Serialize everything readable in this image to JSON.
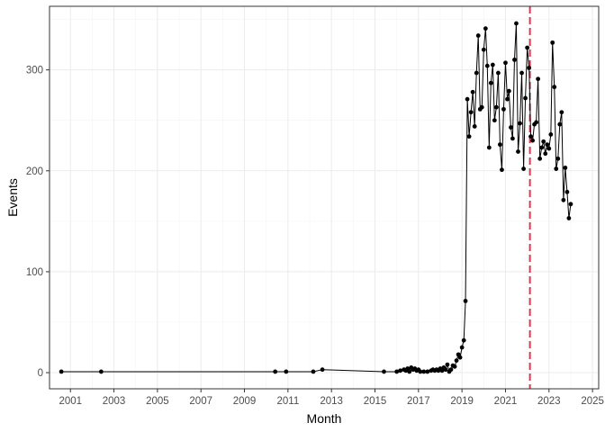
{
  "chart_data": {
    "type": "line",
    "title": "",
    "xlabel": "Month",
    "ylabel": "Events",
    "xlim": [
      "2000-01-15",
      "2025-04-15"
    ],
    "ylim": [
      -16,
      363
    ],
    "x_ticks": [
      "2001",
      "2003",
      "2005",
      "2007",
      "2009",
      "2011",
      "2013",
      "2015",
      "2017",
      "2019",
      "2021",
      "2023",
      "2025"
    ],
    "y_ticks": [
      0,
      100,
      200,
      300
    ],
    "grid": true,
    "legend": "none",
    "series": [
      {
        "name": "",
        "color": "#000000",
        "points": [
          [
            "2000-08-01",
            1
          ],
          [
            "2002-06-01",
            1
          ],
          [
            "2010-06-01",
            1
          ],
          [
            "2010-12-01",
            1
          ],
          [
            "2012-03-01",
            1
          ],
          [
            "2012-08-01",
            3
          ],
          [
            "2015-06-01",
            1
          ],
          [
            "2016-01-01",
            1
          ],
          [
            "2016-03-01",
            2
          ],
          [
            "2016-05-01",
            3
          ],
          [
            "2016-06-01",
            2
          ],
          [
            "2016-07-01",
            4
          ],
          [
            "2016-08-01",
            1
          ],
          [
            "2016-09-01",
            5
          ],
          [
            "2016-10-01",
            3
          ],
          [
            "2016-11-01",
            4
          ],
          [
            "2016-12-01",
            2
          ],
          [
            "2017-01-01",
            3
          ],
          [
            "2017-02-01",
            1
          ],
          [
            "2017-04-01",
            1
          ],
          [
            "2017-06-01",
            1
          ],
          [
            "2017-08-01",
            2
          ],
          [
            "2017-09-01",
            3
          ],
          [
            "2017-10-01",
            2
          ],
          [
            "2017-11-01",
            3
          ],
          [
            "2017-12-01",
            2
          ],
          [
            "2018-01-01",
            4
          ],
          [
            "2018-02-01",
            2
          ],
          [
            "2018-03-01",
            5
          ],
          [
            "2018-04-01",
            3
          ],
          [
            "2018-05-01",
            8
          ],
          [
            "2018-06-01",
            1
          ],
          [
            "2018-07-01",
            3
          ],
          [
            "2018-08-01",
            7
          ],
          [
            "2018-09-01",
            6
          ],
          [
            "2018-10-01",
            12
          ],
          [
            "2018-11-01",
            18
          ],
          [
            "2018-12-01",
            15
          ],
          [
            "2019-01-01",
            25
          ],
          [
            "2019-02-01",
            32
          ],
          [
            "2019-03-01",
            71
          ],
          [
            "2019-04-01",
            271
          ],
          [
            "2019-05-01",
            234
          ],
          [
            "2019-06-01",
            258
          ],
          [
            "2019-07-01",
            278
          ],
          [
            "2019-08-01",
            244
          ],
          [
            "2019-09-01",
            297
          ],
          [
            "2019-10-01",
            334
          ],
          [
            "2019-11-01",
            261
          ],
          [
            "2019-12-01",
            263
          ],
          [
            "2020-01-01",
            320
          ],
          [
            "2020-02-01",
            341
          ],
          [
            "2020-03-01",
            304
          ],
          [
            "2020-04-01",
            223
          ],
          [
            "2020-05-01",
            287
          ],
          [
            "2020-06-01",
            305
          ],
          [
            "2020-07-01",
            250
          ],
          [
            "2020-08-01",
            263
          ],
          [
            "2020-09-01",
            297
          ],
          [
            "2020-10-01",
            226
          ],
          [
            "2020-11-01",
            201
          ],
          [
            "2020-12-01",
            261
          ],
          [
            "2021-01-01",
            307
          ],
          [
            "2021-02-01",
            271
          ],
          [
            "2021-03-01",
            279
          ],
          [
            "2021-04-01",
            243
          ],
          [
            "2021-05-01",
            232
          ],
          [
            "2021-06-01",
            310
          ],
          [
            "2021-07-01",
            346
          ],
          [
            "2021-08-01",
            219
          ],
          [
            "2021-09-01",
            247
          ],
          [
            "2021-10-01",
            297
          ],
          [
            "2021-11-01",
            202
          ],
          [
            "2021-12-01",
            272
          ],
          [
            "2022-01-01",
            322
          ],
          [
            "2022-02-01",
            302
          ],
          [
            "2022-03-01",
            234
          ],
          [
            "2022-04-01",
            230
          ],
          [
            "2022-05-01",
            246
          ],
          [
            "2022-06-01",
            248
          ],
          [
            "2022-07-01",
            291
          ],
          [
            "2022-08-01",
            212
          ],
          [
            "2022-09-01",
            223
          ],
          [
            "2022-10-01",
            229
          ],
          [
            "2022-11-01",
            217
          ],
          [
            "2022-12-01",
            226
          ],
          [
            "2023-01-01",
            222
          ],
          [
            "2023-02-01",
            236
          ],
          [
            "2023-03-01",
            327
          ],
          [
            "2023-04-01",
            283
          ],
          [
            "2023-05-01",
            202
          ],
          [
            "2023-06-01",
            212
          ],
          [
            "2023-07-01",
            246
          ],
          [
            "2023-08-01",
            258
          ],
          [
            "2023-09-01",
            171
          ],
          [
            "2023-10-01",
            203
          ],
          [
            "2023-11-01",
            179
          ],
          [
            "2023-12-01",
            153
          ],
          [
            "2024-01-01",
            167
          ]
        ]
      }
    ],
    "reference_lines": [
      {
        "orientation": "vertical",
        "x": "2022-02-15",
        "style": "dashed",
        "color": "#e8334a"
      }
    ]
  }
}
